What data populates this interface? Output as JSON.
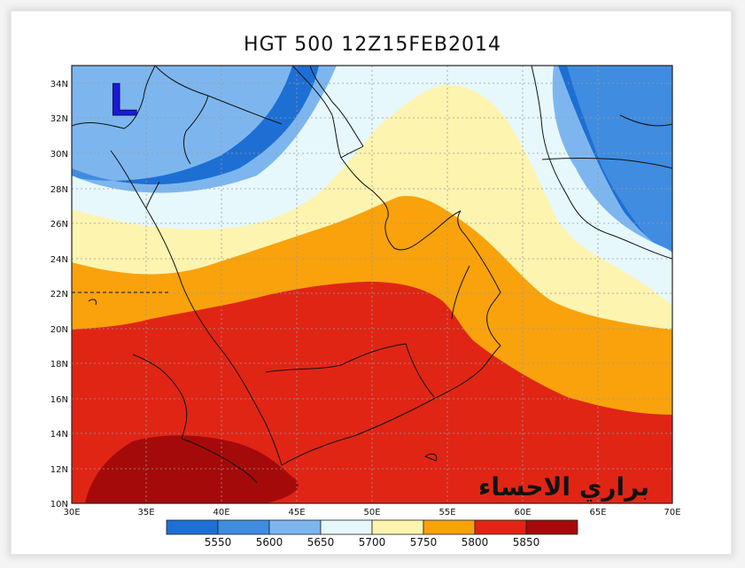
{
  "title": "HGT 500 12Z15FEB2014",
  "watermark": "براري الاحساء",
  "low_marker": "L",
  "y_ticks": [
    "34N",
    "32N",
    "30N",
    "28N",
    "26N",
    "24N",
    "22N",
    "20N",
    "18N",
    "16N",
    "14N",
    "12N",
    "10N"
  ],
  "x_ticks": [
    "30E",
    "35E",
    "40E",
    "45E",
    "50E",
    "55E",
    "60E",
    "65E",
    "70E"
  ],
  "colorbar": {
    "colors": [
      "#1e6fd4",
      "#3f8ce0",
      "#7db6ef",
      "#e6f8fc",
      "#fdf4b0",
      "#f9a20c",
      "#e02515",
      "#a50a0a"
    ],
    "labels": [
      "5550",
      "5600",
      "5650",
      "5700",
      "5750",
      "5800",
      "5850"
    ]
  },
  "colors": {
    "c5550": "#1e6fd4",
    "c5600": "#3f8ce0",
    "c5650": "#7db6ef",
    "c5700": "#e6f8fc",
    "c5750": "#fdf4b0",
    "c5800": "#f9a20c",
    "c5850": "#e02515",
    "c5900": "#a50a0a"
  }
}
